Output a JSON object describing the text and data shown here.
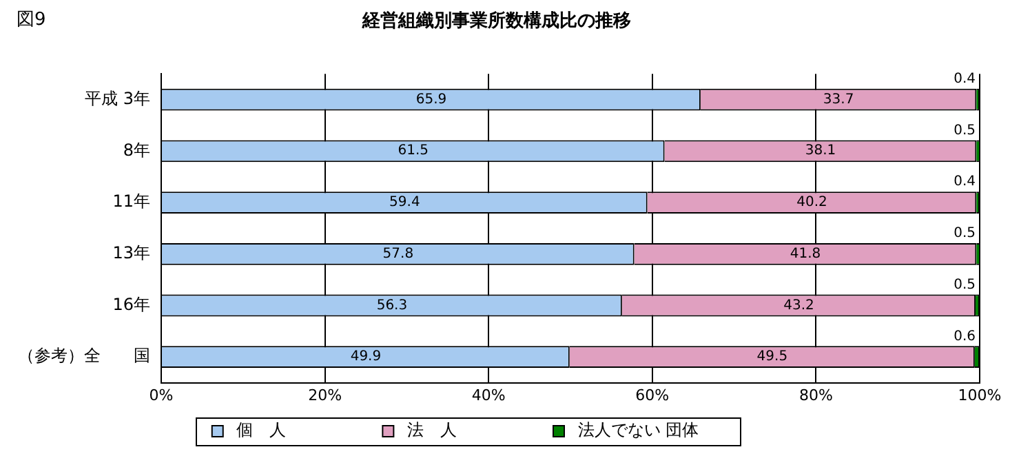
{
  "chart_data": {
    "type": "bar",
    "orientation": "horizontal",
    "stacked": true,
    "title": "経営組織別事業所数構成比の推移",
    "annotations": [
      "図9"
    ],
    "categories": [
      "平成 3年",
      "8年",
      "11年",
      "13年",
      "16年",
      "（参考）全　　国"
    ],
    "series": [
      {
        "name": "個　人",
        "color": "#a6caf0",
        "values": [
          65.9,
          61.5,
          59.4,
          57.8,
          56.3,
          49.9
        ]
      },
      {
        "name": "法　人",
        "color": "#e0a0c0",
        "values": [
          33.7,
          38.1,
          40.2,
          41.8,
          43.2,
          49.5
        ]
      },
      {
        "name": "法人でない 団体",
        "color": "#008000",
        "values": [
          0.4,
          0.5,
          0.4,
          0.5,
          0.5,
          0.6
        ]
      }
    ],
    "xlim": [
      0,
      100
    ],
    "xticks": [
      {
        "value": 0,
        "label": "0%"
      },
      {
        "value": 20,
        "label": "20%"
      },
      {
        "value": 40,
        "label": "40%"
      },
      {
        "value": 60,
        "label": "60%"
      },
      {
        "value": 80,
        "label": "80%"
      },
      {
        "value": 100,
        "label": "100%"
      }
    ],
    "grid": "x",
    "legend": "bottom",
    "data_labels": true
  }
}
